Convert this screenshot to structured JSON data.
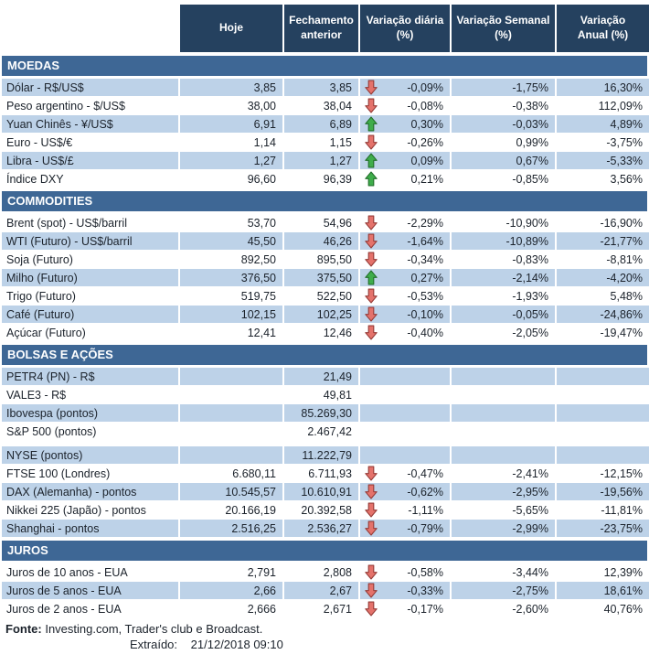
{
  "colors": {
    "header_bg": "#25415f",
    "section_bg": "#3e6795",
    "row_blue": "#bdd2e8",
    "row_white": "#ffffff",
    "text": "#1b222b",
    "header_text": "#ffffff",
    "arrow_down_fill": "#e4726b",
    "arrow_down_stroke": "#963c38",
    "arrow_up_fill": "#3fad4b",
    "arrow_up_stroke": "#23702c"
  },
  "icons": {
    "trend_down": "red-down-arrow",
    "trend_up": "green-up-arrow"
  },
  "footer": {
    "fonte_label": "Fonte:",
    "fonte_text": "Investing.com, Trader's club e Broadcast.",
    "extraido_label": "Extraído:",
    "extraido_value": "21/12/2018 09:10"
  },
  "chart_data": {
    "type": "table",
    "columns": [
      "",
      "Hoje",
      [
        "Fechamento",
        "anterior"
      ],
      [
        "Variação diária",
        "(%)"
      ],
      [
        "Variação Semanal",
        "(%)"
      ],
      [
        "Variação",
        "Anual (%)"
      ]
    ],
    "sections": [
      {
        "title": "MOEDAS",
        "zebra_start": "blue",
        "rows": [
          {
            "label": "Dólar - R$/US$",
            "hoje": "3,85",
            "fechamento_anterior": "3,85",
            "arrow": "down",
            "variacao_diaria": "-0,09%",
            "variacao_semanal": "-1,75%",
            "variacao_anual": "16,30%"
          },
          {
            "label": "Peso argentino - $/US$",
            "hoje": "38,00",
            "fechamento_anterior": "38,04",
            "arrow": "down",
            "variacao_diaria": "-0,08%",
            "variacao_semanal": "-0,38%",
            "variacao_anual": "112,09%"
          },
          {
            "label": "Yuan Chinês - ¥/US$",
            "hoje": "6,91",
            "fechamento_anterior": "6,89",
            "arrow": "up",
            "variacao_diaria": "0,30%",
            "variacao_semanal": "-0,03%",
            "variacao_anual": "4,89%"
          },
          {
            "label": "Euro - US$/€",
            "hoje": "1,14",
            "fechamento_anterior": "1,15",
            "arrow": "down",
            "variacao_diaria": "-0,26%",
            "variacao_semanal": "0,99%",
            "variacao_anual": "-3,75%"
          },
          {
            "label": "Libra - US$/£",
            "hoje": "1,27",
            "fechamento_anterior": "1,27",
            "arrow": "up",
            "variacao_diaria": "0,09%",
            "variacao_semanal": "0,67%",
            "variacao_anual": "-5,33%"
          },
          {
            "label": "Índice DXY",
            "hoje": "96,60",
            "fechamento_anterior": "96,39",
            "arrow": "up",
            "variacao_diaria": "0,21%",
            "variacao_semanal": "-0,85%",
            "variacao_anual": "3,56%"
          }
        ]
      },
      {
        "title": "COMMODITIES",
        "zebra_start": "white",
        "rows": [
          {
            "label": "Brent (spot) - US$/barril",
            "hoje": "53,70",
            "fechamento_anterior": "54,96",
            "arrow": "down",
            "variacao_diaria": "-2,29%",
            "variacao_semanal": "-10,90%",
            "variacao_anual": "-16,90%"
          },
          {
            "label": "WTI (Futuro) - US$/barril",
            "hoje": "45,50",
            "fechamento_anterior": "46,26",
            "arrow": "down",
            "variacao_diaria": "-1,64%",
            "variacao_semanal": "-10,89%",
            "variacao_anual": "-21,77%"
          },
          {
            "label": "Soja (Futuro)",
            "hoje": "892,50",
            "fechamento_anterior": "895,50",
            "arrow": "down",
            "variacao_diaria": "-0,34%",
            "variacao_semanal": "-0,83%",
            "variacao_anual": "-8,81%"
          },
          {
            "label": "Milho (Futuro)",
            "hoje": "376,50",
            "fechamento_anterior": "375,50",
            "arrow": "up",
            "variacao_diaria": "0,27%",
            "variacao_semanal": "-2,14%",
            "variacao_anual": "-4,20%"
          },
          {
            "label": "Trigo (Futuro)",
            "hoje": "519,75",
            "fechamento_anterior": "522,50",
            "arrow": "down",
            "variacao_diaria": "-0,53%",
            "variacao_semanal": "-1,93%",
            "variacao_anual": "5,48%"
          },
          {
            "label": "Café (Futuro)",
            "hoje": "102,15",
            "fechamento_anterior": "102,25",
            "arrow": "down",
            "variacao_diaria": "-0,10%",
            "variacao_semanal": "-0,05%",
            "variacao_anual": "-24,86%"
          },
          {
            "label": "Açúcar (Futuro)",
            "hoje": "12,41",
            "fechamento_anterior": "12,46",
            "arrow": "down",
            "variacao_diaria": "-0,40%",
            "variacao_semanal": "-2,05%",
            "variacao_anual": "-19,47%"
          }
        ]
      },
      {
        "title": "BOLSAS E AÇÕES",
        "zebra_start": "blue",
        "rows": [
          {
            "label": "PETR4 (PN) - R$",
            "hoje": "",
            "fechamento_anterior": "21,49",
            "arrow": null,
            "variacao_diaria": "",
            "variacao_semanal": "",
            "variacao_anual": ""
          },
          {
            "label": "VALE3 - R$",
            "hoje": "",
            "fechamento_anterior": "49,81",
            "arrow": null,
            "variacao_diaria": "",
            "variacao_semanal": "",
            "variacao_anual": ""
          },
          {
            "label": "Ibovespa (pontos)",
            "hoje": "",
            "fechamento_anterior": "85.269,30",
            "arrow": null,
            "variacao_diaria": "",
            "variacao_semanal": "",
            "variacao_anual": ""
          },
          {
            "label": "S&P 500 (pontos)",
            "hoje": "",
            "fechamento_anterior": "2.467,42",
            "arrow": null,
            "variacao_diaria": "",
            "variacao_semanal": "",
            "variacao_anual": ""
          },
          {
            "label": "NYSE (pontos)",
            "hoje": "",
            "fechamento_anterior": "11.222,79",
            "arrow": null,
            "variacao_diaria": "",
            "variacao_semanal": "",
            "variacao_anual": "",
            "spacer_before": true
          },
          {
            "label": "FTSE 100 (Londres)",
            "hoje": "6.680,11",
            "fechamento_anterior": "6.711,93",
            "arrow": "down",
            "variacao_diaria": "-0,47%",
            "variacao_semanal": "-2,41%",
            "variacao_anual": "-12,15%"
          },
          {
            "label": "DAX (Alemanha) - pontos",
            "hoje": "10.545,57",
            "fechamento_anterior": "10.610,91",
            "arrow": "down",
            "variacao_diaria": "-0,62%",
            "variacao_semanal": "-2,95%",
            "variacao_anual": "-19,56%"
          },
          {
            "label": "Nikkei 225 (Japão) - pontos",
            "hoje": "20.166,19",
            "fechamento_anterior": "20.392,58",
            "arrow": "down",
            "variacao_diaria": "-1,11%",
            "variacao_semanal": "-5,65%",
            "variacao_anual": "-11,81%"
          },
          {
            "label": "Shanghai - pontos",
            "hoje": "2.516,25",
            "fechamento_anterior": "2.536,27",
            "arrow": "down",
            "variacao_diaria": "-0,79%",
            "variacao_semanal": "-2,99%",
            "variacao_anual": "-23,75%"
          }
        ]
      },
      {
        "title": "JUROS",
        "zebra_start": "white",
        "rows": [
          {
            "label": "Juros de 10 anos - EUA",
            "hoje": "2,791",
            "fechamento_anterior": "2,808",
            "arrow": "down",
            "variacao_diaria": "-0,58%",
            "variacao_semanal": "-3,44%",
            "variacao_anual": "12,39%"
          },
          {
            "label": "Juros de 5 anos - EUA",
            "hoje": "2,66",
            "fechamento_anterior": "2,67",
            "arrow": "down",
            "variacao_diaria": "-0,33%",
            "variacao_semanal": "-2,75%",
            "variacao_anual": "18,61%"
          },
          {
            "label": "Juros de 2 anos - EUA",
            "hoje": "2,666",
            "fechamento_anterior": "2,671",
            "arrow": "down",
            "variacao_diaria": "-0,17%",
            "variacao_semanal": "-2,60%",
            "variacao_anual": "40,76%"
          }
        ]
      }
    ]
  }
}
